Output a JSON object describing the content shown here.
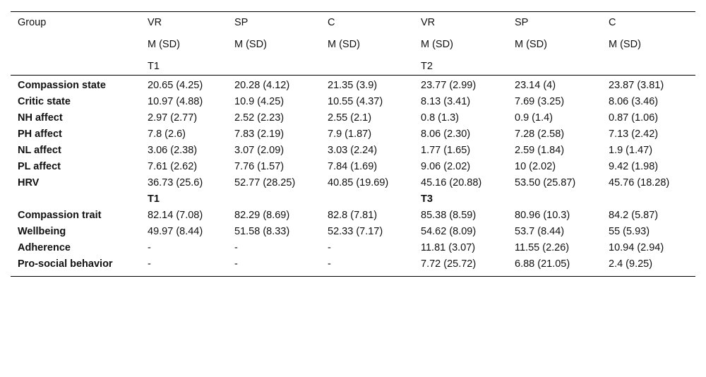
{
  "header": {
    "row1": [
      "Group",
      "VR",
      "SP",
      "C",
      "VR",
      "SP",
      "C"
    ],
    "row2": [
      "",
      "M (SD)",
      "M (SD)",
      "M (SD)",
      "M (SD)",
      "M (SD)",
      "M (SD)"
    ],
    "row3": [
      "",
      "T1",
      "",
      "",
      "T2",
      "",
      ""
    ]
  },
  "rows": [
    {
      "label": "Compassion state",
      "cells": [
        "20.65 (4.25)",
        "20.28 (4.12)",
        "21.35 (3.9)",
        "23.77 (2.99)",
        "23.14 (4)",
        "23.87 (3.81)"
      ]
    },
    {
      "label": "Critic state",
      "cells": [
        "10.97 (4.88)",
        "10.9 (4.25)",
        "10.55 (4.37)",
        "8.13 (3.41)",
        "7.69 (3.25)",
        "8.06 (3.46)"
      ]
    },
    {
      "label": "NH affect",
      "cells": [
        "2.97 (2.77)",
        "2.52 (2.23)",
        "2.55 (2.1)",
        "0.8 (1.3)",
        "0.9 (1.4)",
        "0.87 (1.06)"
      ]
    },
    {
      "label": "PH affect",
      "cells": [
        "7.8 (2.6)",
        "7.83 (2.19)",
        "7.9 (1.87)",
        "8.06 (2.30)",
        "7.28 (2.58)",
        "7.13 (2.42)"
      ]
    },
    {
      "label": "NL affect",
      "cells": [
        "3.06 (2.38)",
        "3.07 (2.09)",
        "3.03 (2.24)",
        "1.77 (1.65)",
        "2.59 (1.84)",
        "1.9 (1.47)"
      ]
    },
    {
      "label": "PL affect",
      "cells": [
        "7.61 (2.62)",
        "7.76 (1.57)",
        "7.84 (1.69)",
        "9.06 (2.02)",
        "10 (2.02)",
        "9.42 (1.98)"
      ]
    },
    {
      "label": "HRV",
      "cells": [
        "36.73 (25.6)",
        "52.77 (28.25)",
        "40.85 (19.69)",
        "45.16 (20.88)",
        "53.50 (25.87)",
        "45.76 (18.28)"
      ]
    }
  ],
  "subheader": [
    "",
    "T1",
    "",
    "",
    "T3",
    "",
    ""
  ],
  "rows2": [
    {
      "label": "Compassion trait",
      "cells": [
        "82.14 (7.08)",
        "82.29 (8.69)",
        "82.8 (7.81)",
        "85.38 (8.59)",
        "80.96 (10.3)",
        "84.2 (5.87)"
      ]
    },
    {
      "label": "Wellbeing",
      "cells": [
        "49.97 (8.44)",
        "51.58 (8.33)",
        "52.33 (7.17)",
        "54.62 (8.09)",
        "53.7 (8.44)",
        "55 (5.93)"
      ]
    },
    {
      "label": "Adherence",
      "cells": [
        "-",
        "-",
        "-",
        "11.81 (3.07)",
        "11.55 (2.26)",
        "10.94 (2.94)"
      ]
    },
    {
      "label": "Pro-social behavior",
      "cells": [
        "-",
        "-",
        "-",
        "7.72 (25.72)",
        "6.88 (21.05)",
        "2.4 (9.25)"
      ]
    }
  ]
}
